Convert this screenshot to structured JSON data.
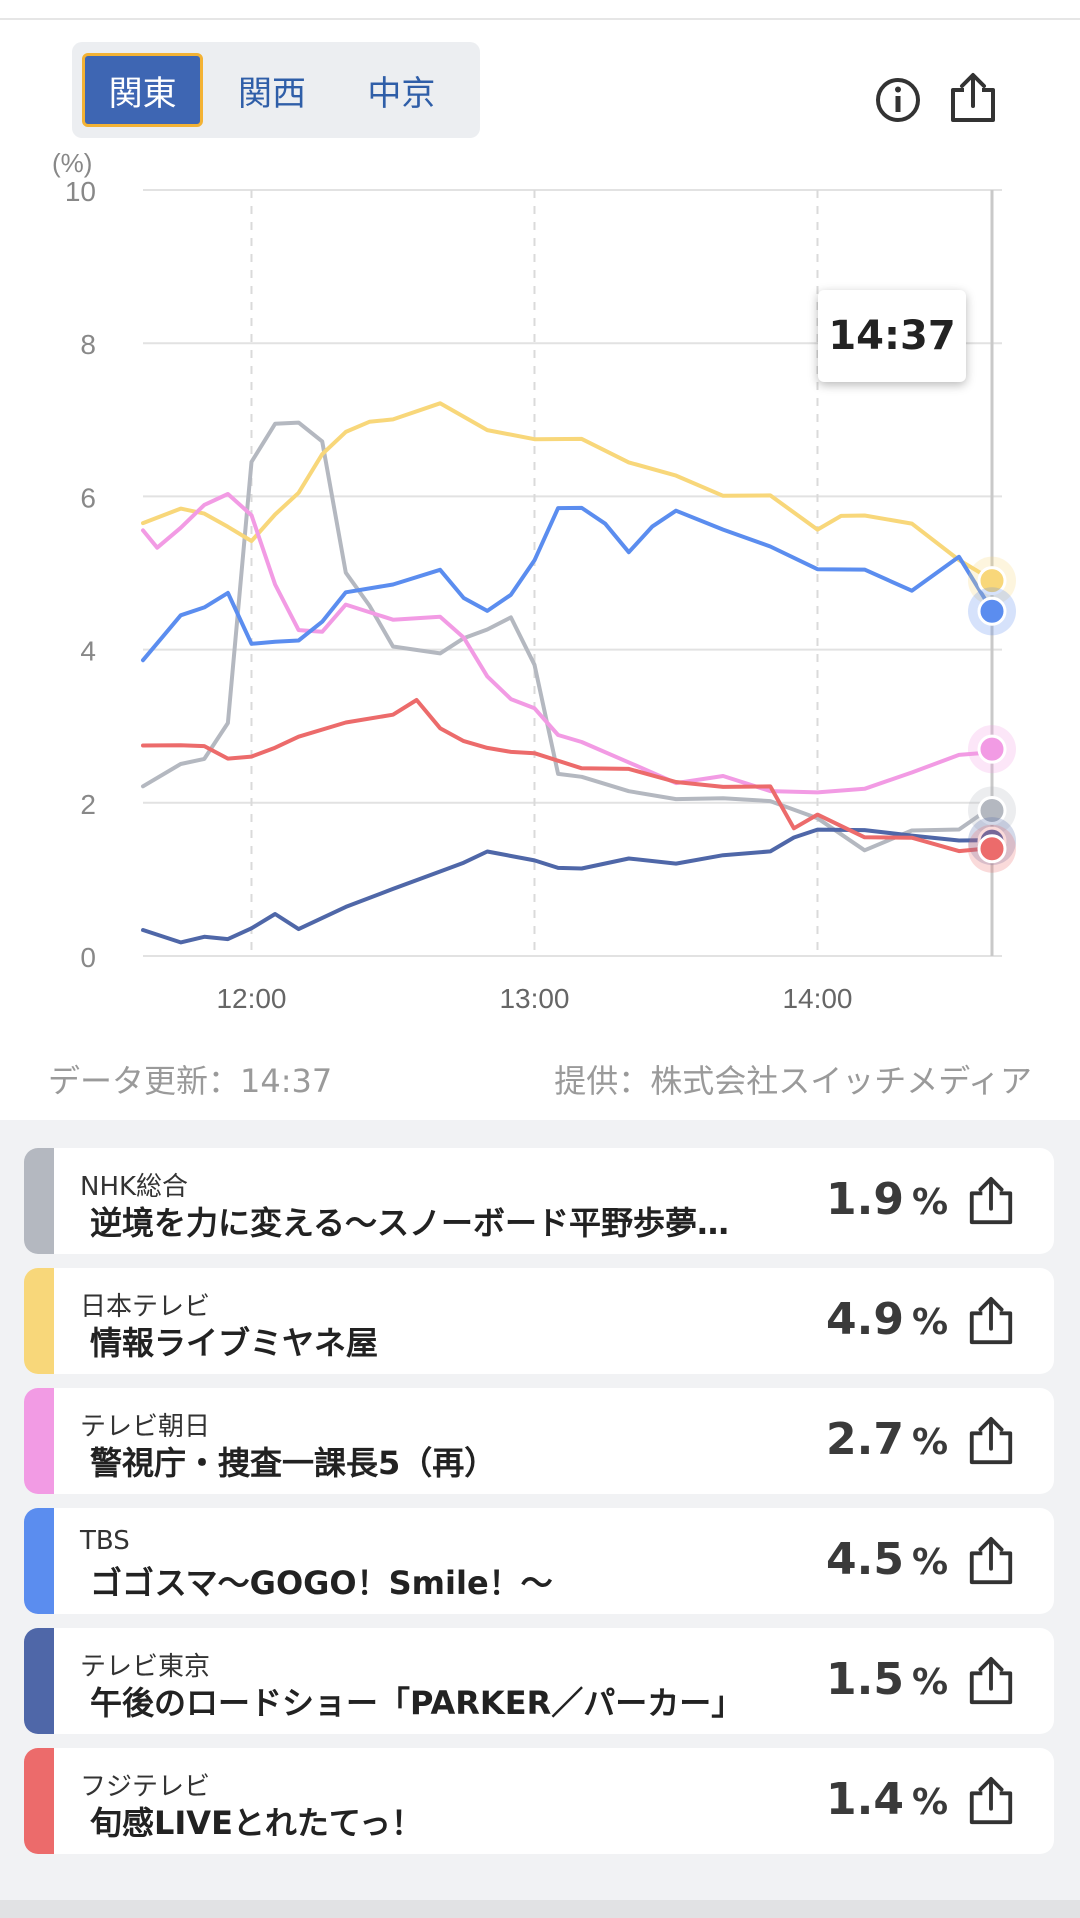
{
  "regions": {
    "tabs": [
      "関東",
      "関西",
      "中京"
    ],
    "active": "関東"
  },
  "icons": {
    "info": "info-icon",
    "share": "share-icon"
  },
  "tooltip": {
    "time": "14:37"
  },
  "chart_data": {
    "type": "line",
    "ylabel": "(%)",
    "ylim": [
      0,
      10
    ],
    "yticks": [
      "0",
      "2",
      "4",
      "6",
      "8",
      "10"
    ],
    "xticks": [
      "12:00",
      "13:00",
      "14:00"
    ],
    "xrange_minutes": [
      "11:37",
      "14:37"
    ],
    "grid": true,
    "series": [
      {
        "name": "NHK総合",
        "color": "#b4b8c0",
        "x": [
          "11:37",
          "11:45",
          "11:50",
          "11:55",
          "12:00",
          "12:05",
          "12:10",
          "12:15",
          "12:20",
          "12:25",
          "12:30",
          "12:40",
          "12:45",
          "12:50",
          "12:55",
          "13:00",
          "13:05",
          "13:10",
          "13:20",
          "13:30",
          "13:40",
          "13:50",
          "14:00",
          "14:10",
          "14:20",
          "14:30",
          "14:37"
        ],
        "values": [
          2.2,
          2.5,
          2.6,
          3.0,
          6.5,
          6.9,
          7.0,
          6.7,
          5.0,
          4.6,
          4.0,
          4.0,
          4.1,
          4.3,
          4.4,
          3.8,
          2.4,
          2.3,
          2.2,
          2.0,
          2.1,
          2.0,
          1.8,
          1.4,
          1.6,
          1.7,
          1.9
        ]
      },
      {
        "name": "日本テレビ",
        "color": "#f8d77a",
        "x": [
          "11:37",
          "11:45",
          "11:50",
          "11:55",
          "12:00",
          "12:05",
          "12:10",
          "12:15",
          "12:20",
          "12:25",
          "12:30",
          "12:40",
          "12:50",
          "13:00",
          "13:10",
          "13:20",
          "13:30",
          "13:40",
          "13:50",
          "14:00",
          "14:05",
          "14:10",
          "14:20",
          "14:30",
          "14:37"
        ],
        "values": [
          5.7,
          5.8,
          5.8,
          5.6,
          5.4,
          5.8,
          6.0,
          6.6,
          6.8,
          7.0,
          7.0,
          7.2,
          6.9,
          6.7,
          6.8,
          6.4,
          6.3,
          6.0,
          6.0,
          5.6,
          5.7,
          5.8,
          5.6,
          5.2,
          4.9
        ]
      },
      {
        "name": "テレビ朝日",
        "color": "#f29be4",
        "x": [
          "11:37",
          "11:40",
          "11:45",
          "11:50",
          "11:55",
          "12:00",
          "12:05",
          "12:10",
          "12:15",
          "12:20",
          "12:30",
          "12:40",
          "12:45",
          "12:50",
          "12:55",
          "13:00",
          "13:05",
          "13:10",
          "13:20",
          "13:30",
          "13:40",
          "13:50",
          "14:00",
          "14:10",
          "14:20",
          "14:30",
          "14:37"
        ],
        "values": [
          5.6,
          5.3,
          5.6,
          5.9,
          6.0,
          5.8,
          4.8,
          4.3,
          4.2,
          4.6,
          4.4,
          4.4,
          4.2,
          3.6,
          3.4,
          3.2,
          2.9,
          2.8,
          2.5,
          2.3,
          2.3,
          2.2,
          2.1,
          2.2,
          2.4,
          2.6,
          2.7
        ]
      },
      {
        "name": "TBS",
        "color": "#5b8def",
        "x": [
          "11:37",
          "11:45",
          "11:50",
          "11:55",
          "12:00",
          "12:05",
          "12:10",
          "12:15",
          "12:20",
          "12:30",
          "12:40",
          "12:45",
          "12:50",
          "12:55",
          "13:00",
          "13:05",
          "13:10",
          "13:15",
          "13:20",
          "13:25",
          "13:30",
          "13:40",
          "13:50",
          "14:00",
          "14:10",
          "14:20",
          "14:30",
          "14:37"
        ],
        "values": [
          3.9,
          4.4,
          4.6,
          4.7,
          4.1,
          4.1,
          4.1,
          4.4,
          4.7,
          4.9,
          5.0,
          4.7,
          4.5,
          4.7,
          5.2,
          5.8,
          5.9,
          5.6,
          5.3,
          5.6,
          5.8,
          5.6,
          5.3,
          5.1,
          5.0,
          4.8,
          5.2,
          4.5
        ]
      },
      {
        "name": "テレビ東京",
        "color": "#4f67a8",
        "x": [
          "11:37",
          "11:45",
          "11:50",
          "11:55",
          "12:00",
          "12:05",
          "12:10",
          "12:20",
          "12:30",
          "12:40",
          "12:45",
          "12:50",
          "13:00",
          "13:05",
          "13:10",
          "13:20",
          "13:30",
          "13:40",
          "13:50",
          "13:55",
          "14:00",
          "14:10",
          "14:20",
          "14:30",
          "14:37"
        ],
        "values": [
          0.3,
          0.2,
          0.25,
          0.2,
          0.4,
          0.5,
          0.4,
          0.6,
          0.9,
          1.1,
          1.2,
          1.4,
          1.2,
          1.2,
          1.1,
          1.3,
          1.2,
          1.3,
          1.4,
          1.5,
          1.7,
          1.6,
          1.6,
          1.5,
          1.5
        ]
      },
      {
        "name": "フジテレビ",
        "color": "#ec6b6b",
        "x": [
          "11:37",
          "11:45",
          "11:50",
          "11:55",
          "12:00",
          "12:05",
          "12:10",
          "12:20",
          "12:30",
          "12:35",
          "12:40",
          "12:45",
          "12:50",
          "12:55",
          "13:00",
          "13:10",
          "13:20",
          "13:30",
          "13:40",
          "13:50",
          "13:55",
          "14:00",
          "14:10",
          "14:20",
          "14:30",
          "14:37"
        ],
        "values": [
          2.7,
          2.8,
          2.7,
          2.6,
          2.6,
          2.7,
          2.9,
          3.0,
          3.2,
          3.3,
          3.0,
          2.8,
          2.7,
          2.7,
          2.6,
          2.5,
          2.4,
          2.3,
          2.2,
          2.2,
          1.7,
          1.8,
          1.6,
          1.5,
          1.4,
          1.4
        ]
      }
    ]
  },
  "meta": {
    "updated": "データ更新：14:37",
    "provider": "提供：株式会社スイッチメディア"
  },
  "channels": [
    {
      "name": "NHK総合",
      "program": "逆境を力に変える～スノーボード平野歩夢…",
      "rating": "1.9",
      "unit": "%",
      "color": "#b4b8c0"
    },
    {
      "name": "日本テレビ",
      "program": "情報ライブミヤネ屋",
      "rating": "4.9",
      "unit": "%",
      "color": "#f8d77a"
    },
    {
      "name": "テレビ朝日",
      "program": "警視庁・捜査一課長5（再）",
      "rating": "2.7",
      "unit": "%",
      "color": "#f29be4"
    },
    {
      "name": "TBS",
      "program": "ゴゴスマ～GOGO！Smile！～",
      "rating": "4.5",
      "unit": "%",
      "color": "#5b8def"
    },
    {
      "name": "テレビ東京",
      "program": "午後のロードショー「PARKER／パーカー」",
      "rating": "1.5",
      "unit": "%",
      "color": "#4f67a8"
    },
    {
      "name": "フジテレビ",
      "program": "旬感LIVEとれたてっ！",
      "rating": "1.4",
      "unit": "%",
      "color": "#ec6b6b"
    }
  ]
}
